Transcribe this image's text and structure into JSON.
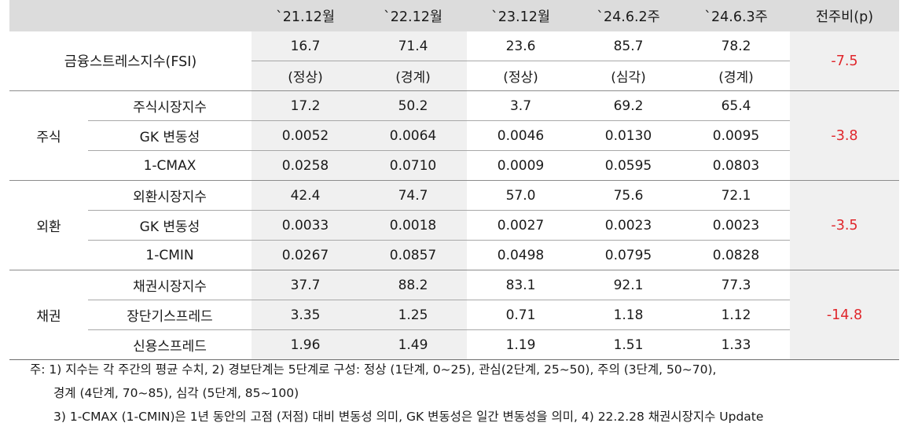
{
  "header": {
    "cols": [
      "`21.12월",
      "`22.12월",
      "`23.12월",
      "`24.6.2주",
      "`24.6.3주",
      "전주비(p)"
    ]
  },
  "fsi": {
    "label": "금융스트레스지수(FSI)",
    "values": [
      "16.7",
      "71.4",
      "23.6",
      "85.7",
      "78.2"
    ],
    "stages": [
      "(정상)",
      "(경계)",
      "(정상)",
      "(심각)",
      "(경계)"
    ],
    "change": "-7.5"
  },
  "groups": [
    {
      "name": "주식",
      "change": "-3.8",
      "rows": [
        {
          "label": "주식시장지수",
          "values": [
            "17.2",
            "50.2",
            "3.7",
            "69.2",
            "65.4"
          ]
        },
        {
          "label": "GK 변동성",
          "values": [
            "0.0052",
            "0.0064",
            "0.0046",
            "0.0130",
            "0.0095"
          ]
        },
        {
          "label": "1-CMAX",
          "values": [
            "0.0258",
            "0.0710",
            "0.0009",
            "0.0595",
            "0.0803"
          ]
        }
      ]
    },
    {
      "name": "외환",
      "change": "-3.5",
      "rows": [
        {
          "label": "외환시장지수",
          "values": [
            "42.4",
            "74.7",
            "57.0",
            "75.6",
            "72.1"
          ]
        },
        {
          "label": "GK 변동성",
          "values": [
            "0.0033",
            "0.0018",
            "0.0027",
            "0.0023",
            "0.0023"
          ]
        },
        {
          "label": "1-CMIN",
          "values": [
            "0.0267",
            "0.0857",
            "0.0498",
            "0.0795",
            "0.0828"
          ]
        }
      ]
    },
    {
      "name": "채권",
      "change": "-14.8",
      "rows": [
        {
          "label": "채권시장지수",
          "values": [
            "37.7",
            "88.2",
            "83.1",
            "92.1",
            "77.3"
          ]
        },
        {
          "label": "장단기스프레드",
          "values": [
            "3.35",
            "1.25",
            "0.71",
            "1.18",
            "1.12"
          ]
        },
        {
          "label": "신용스프레드",
          "values": [
            "1.96",
            "1.49",
            "1.19",
            "1.51",
            "1.33"
          ]
        }
      ]
    }
  ],
  "notes": [
    "주: 1) 지수는 각 주간의 평균 수치, 2) 경보단계는 5단계로 구성: 정상 (1단계, 0~25), 관심(2단계, 25~50), 주의 (3단계, 50~70),",
    "경계 (4단계, 70~85), 심각 (5단계, 85~100)",
    "3) 1-CMAX (1-CMIN)은 1년 동안의 고점 (저점) 대비 변동성 의미, GK 변동성은 일간 변동성을 의미, 4) 22.2.28 채권시장지수 Update"
  ],
  "colors": {
    "header_bg": "#dcdcdc",
    "shaded_bg": "#f0f0f0",
    "negative": "#e0262b"
  }
}
